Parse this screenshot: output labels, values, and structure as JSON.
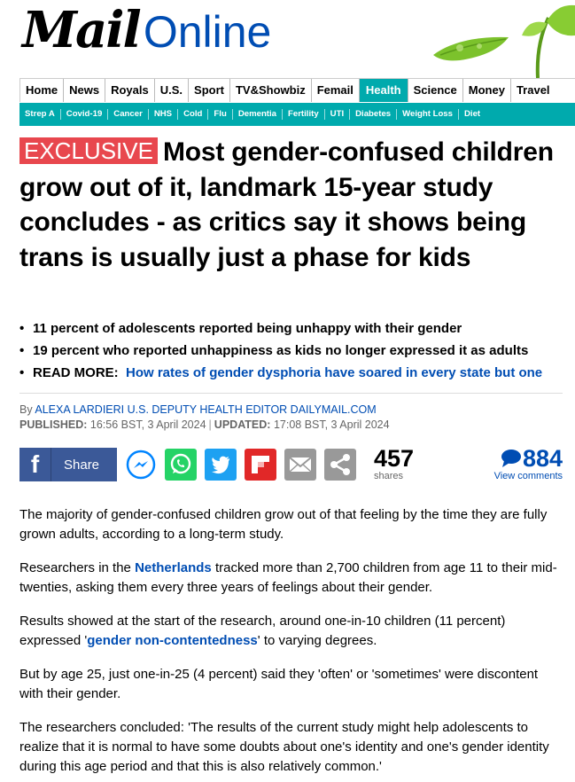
{
  "masthead": {
    "logo_mail": "Mail",
    "logo_online": "Online"
  },
  "nav": {
    "items": [
      "Home",
      "News",
      "Royals",
      "U.S.",
      "Sport",
      "TV&Showbiz",
      "Femail",
      "Health",
      "Science",
      "Money",
      "Travel"
    ],
    "active": "Health"
  },
  "subnav": {
    "items": [
      "Strep A",
      "Covid-19",
      "Cancer",
      "NHS",
      "Cold",
      "Flu",
      "Dementia",
      "Fertility",
      "UTI",
      "Diabetes",
      "Weight Loss",
      "Diet"
    ]
  },
  "article": {
    "badge": "EXCLUSIVE",
    "headline": "Most gender-confused children grow out of it, landmark 15-year study concludes - as critics say it shows being trans is usually just a phase for kids",
    "bullets": [
      "11 percent of adolescents reported being unhappy with their gender",
      "19 percent who reported unhappiness as kids no longer expressed it as adults"
    ],
    "read_more_label": "READ MORE:",
    "read_more_link": "How rates of gender dysphoria have soared in every state but one",
    "byline_prefix": "By",
    "byline_author": "ALEXA LARDIERI U.S. DEPUTY HEALTH EDITOR DAILYMAIL.COM",
    "published_label": "PUBLISHED:",
    "published_value": "16:56 BST, 3 April 2024",
    "updated_label": "UPDATED:",
    "updated_value": "17:08 BST, 3 April 2024"
  },
  "share": {
    "fb_label": "Share",
    "share_count": "457",
    "share_label": "shares",
    "comment_count": "884",
    "comment_label": "View comments",
    "icons": [
      "facebook-icon",
      "messenger-icon",
      "whatsapp-icon",
      "twitter-icon",
      "flipboard-icon",
      "email-icon",
      "share-icon",
      "comment-bubble-icon"
    ]
  },
  "body": {
    "p1": "The majority of gender-confused children grow out of that feeling by the time they are fully grown adults, according to a long-term study.",
    "p2_pre": "Researchers in the ",
    "p2_link": "Netherlands",
    "p2_post": " tracked more than 2,700 children from age 11 to their mid-twenties, asking them every three years of feelings about their gender.",
    "p3_pre": "Results showed at the start of the research, around one-in-10 children (11 percent) expressed '",
    "p3_link": "gender non-contentedness",
    "p3_post": "' to varying degrees.",
    "p4": "But by age 25, just one-in-25 (4 percent) said they 'often' or 'sometimes' were discontent with their gender.",
    "p5": "The researchers concluded: 'The results of the current study might help adolescents to realize that it is normal to have some doubts about one's identity and one's gender identity during this age period and that this is also relatively common.'"
  },
  "colors": {
    "brand_blue": "#004db3",
    "health_teal": "#00aaad",
    "exclusive_red": "#e8474e",
    "facebook_blue": "#3b5998"
  }
}
